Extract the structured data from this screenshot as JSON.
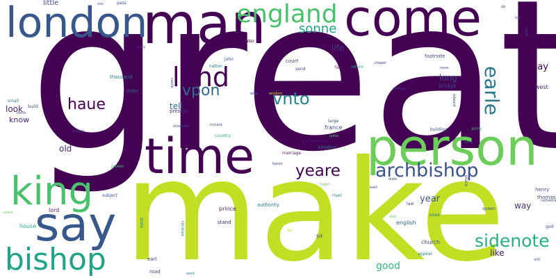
{
  "words": [
    {
      "text": "great",
      "color": "#440154"
    },
    {
      "text": "make",
      "color": "#c2df23"
    },
    {
      "text": "man",
      "color": "#440154"
    },
    {
      "text": "come",
      "color": "#440154"
    },
    {
      "text": "person",
      "color": "#6ccd5a"
    },
    {
      "text": "time",
      "color": "#440154"
    },
    {
      "text": "london",
      "color": "#38588c"
    },
    {
      "text": "say",
      "color": "#38588c"
    },
    {
      "text": "king",
      "color": "#4ac16d"
    },
    {
      "text": "england",
      "color": "#4ac16d"
    },
    {
      "text": "bishop",
      "color": "#20a386"
    },
    {
      "text": "land",
      "color": "#440154"
    },
    {
      "text": "archbishop",
      "color": "#3b528b"
    },
    {
      "text": "yeare",
      "color": "#440154"
    },
    {
      "text": "vnto",
      "color": "#26828e"
    },
    {
      "text": "sidenote",
      "color": "#29af7f"
    },
    {
      "text": "vpon",
      "color": "#31688e"
    },
    {
      "text": "haue",
      "color": "#440154"
    },
    {
      "text": "earle",
      "color": "#2a788e"
    },
    {
      "text": "sonne",
      "color": "#20a386"
    },
    {
      "text": "good",
      "color": "#35b779"
    },
    {
      "text": "year",
      "color": "#3b528b"
    },
    {
      "text": "day",
      "color": "#440154"
    },
    {
      "text": "life",
      "color": "#443983"
    },
    {
      "text": "long",
      "color": "#3e4a89"
    },
    {
      "text": "like",
      "color": "#481a6c"
    },
    {
      "text": "old",
      "color": "#482878"
    },
    {
      "text": "look",
      "color": "#482878"
    },
    {
      "text": "tell",
      "color": "#31688e"
    },
    {
      "text": "way",
      "color": "#46337f"
    },
    {
      "text": "know",
      "color": "#482475"
    },
    {
      "text": "little",
      "color": "#3e4a89"
    },
    {
      "text": "bridge",
      "color": "#3e4a89"
    },
    {
      "text": "west",
      "color": "#481f70"
    },
    {
      "text": "sir",
      "color": "#3e4a89"
    },
    {
      "text": "church",
      "color": "#3e4a89"
    },
    {
      "text": "english",
      "color": "#31688e"
    },
    {
      "text": "prince",
      "color": "#482475"
    },
    {
      "text": "authority",
      "color": "#2a788e"
    },
    {
      "text": "house",
      "color": "#25ab82"
    },
    {
      "text": "henry",
      "color": "#3e4a89"
    },
    {
      "text": "thomas",
      "color": "#3e4a89"
    },
    {
      "text": "lord",
      "color": "#482475"
    },
    {
      "text": "france",
      "color": "#3e4a89"
    },
    {
      "text": "parliament",
      "color": "#481a6c"
    },
    {
      "text": "thousand",
      "color": "#26828e"
    },
    {
      "text": "court",
      "color": "#3e4a89"
    },
    {
      "text": "footnote",
      "color": "#3e4a89"
    },
    {
      "text": "stand",
      "color": "#482475"
    },
    {
      "text": "earl",
      "color": "#443983"
    },
    {
      "text": "road",
      "color": "#3e4a89"
    },
    {
      "text": "order",
      "color": "#31688e"
    },
    {
      "text": "present",
      "color": "#46337f"
    },
    {
      "text": "john",
      "color": "#3b528b"
    },
    {
      "text": "nation",
      "color": "#2a788e"
    },
    {
      "text": "building",
      "color": "#3b528b"
    },
    {
      "text": "army",
      "color": "#4ac16d"
    },
    {
      "text": "large",
      "color": "#3e4a89"
    },
    {
      "text": "kingdom",
      "color": "#2a788e"
    },
    {
      "text": "marriage",
      "color": "#481a6c"
    },
    {
      "text": "country",
      "color": "#35b779"
    },
    {
      "text": "power",
      "color": "#35b779"
    },
    {
      "text": "return",
      "color": "#20a386"
    },
    {
      "text": "far",
      "color": "#482475"
    },
    {
      "text": "send",
      "color": "#3e4a89"
    },
    {
      "text": "small",
      "color": "#2a788e"
    },
    {
      "text": "build",
      "color": "#3e4a89"
    },
    {
      "text": "water",
      "color": "#440154"
    },
    {
      "text": "mary",
      "color": "#482475"
    },
    {
      "text": "pass",
      "color": "#3e4a89"
    },
    {
      "text": "richard",
      "color": "#3e4a89"
    },
    {
      "text": "elizabeth",
      "color": "#3e4a89"
    },
    {
      "text": "subject",
      "color": "#3e4a89"
    },
    {
      "text": "river",
      "color": "#26828e"
    },
    {
      "text": "queen",
      "color": "#3e4a89"
    },
    {
      "text": "pope",
      "color": "#2a788e"
    },
    {
      "text": "law",
      "color": "#3e4a89"
    },
    {
      "text": "appear",
      "color": "#26828e"
    },
    {
      "text": "state",
      "color": "#2a788e"
    },
    {
      "text": "receive",
      "color": "#26828e"
    },
    {
      "text": "work",
      "color": "#2a788e"
    },
    {
      "text": "die",
      "color": "#c2df23"
    },
    {
      "text": "town",
      "color": "#6ccd5a"
    },
    {
      "text": "latter",
      "color": "#4ac16d"
    },
    {
      "text": "century",
      "color": "#3e4a89"
    },
    {
      "text": "chapel",
      "color": "#3e4a89"
    },
    {
      "text": "castle",
      "color": "#3e4a89"
    },
    {
      "text": "place",
      "color": "#3e4a89"
    },
    {
      "text": "vol",
      "color": "#3e4a89"
    },
    {
      "text": "god",
      "color": "#3e4a89"
    },
    {
      "text": "duke",
      "color": "#3e4a89"
    },
    {
      "text": "cause",
      "color": "#6ccd5a"
    },
    {
      "text": "son",
      "color": "#3e4a89"
    },
    {
      "text": "hall",
      "color": "#3e4a89"
    },
    {
      "text": "south",
      "color": "#3e4a89"
    },
    {
      "text": "nave",
      "color": "#3e4a89"
    },
    {
      "text": "edward",
      "color": "#3e4a89"
    },
    {
      "text": "tower",
      "color": "#3e4a89"
    },
    {
      "text": "cathedral",
      "color": "#3e4a89"
    },
    {
      "text": "door",
      "color": "#6ccd5a"
    },
    {
      "text": "east",
      "color": "#3e4a89"
    },
    {
      "text": "baron",
      "color": "#3e4a89"
    },
    {
      "text": "north",
      "color": "#3e4a89"
    },
    {
      "text": "william",
      "color": "#3e4a89"
    },
    {
      "text": "wise",
      "color": "#3e4a89"
    },
    {
      "text": "wisdom",
      "color": "#c2df23"
    },
    {
      "text": "ab",
      "color": "#3e4a89"
    }
  ]
}
